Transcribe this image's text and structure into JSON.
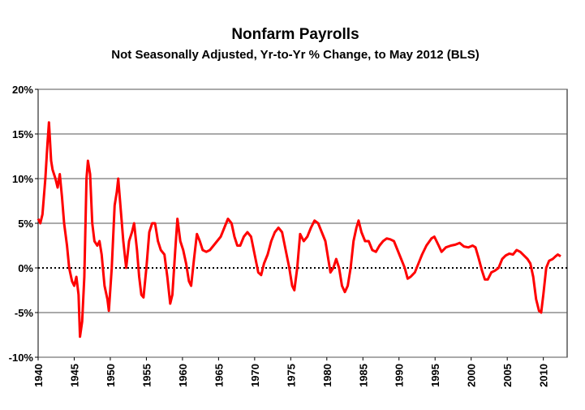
{
  "chart_data": {
    "type": "line",
    "title": "Nonfarm Payrolls",
    "subtitle": "Not Seasonally Adjusted, Yr-to-Yr % Change, to May 2012 (BLS)",
    "x": [
      1940,
      1940.3,
      1940.6,
      1941,
      1941.3,
      1941.5,
      1941.8,
      1942,
      1942.4,
      1942.7,
      1943,
      1943.3,
      1943.6,
      1944,
      1944.3,
      1944.7,
      1945,
      1945.3,
      1945.6,
      1945.8,
      1946.1,
      1946.4,
      1946.7,
      1946.9,
      1947.2,
      1947.5,
      1947.8,
      1948.2,
      1948.5,
      1948.8,
      1949.2,
      1949.6,
      1949.8,
      1950.2,
      1950.6,
      1950.9,
      1951.1,
      1951.4,
      1951.8,
      1952.2,
      1952.6,
      1953,
      1953.3,
      1953.7,
      1954,
      1954.3,
      1954.6,
      1955,
      1955.4,
      1955.8,
      1956.2,
      1956.6,
      1957,
      1957.5,
      1957.9,
      1958.3,
      1958.6,
      1959,
      1959.3,
      1959.7,
      1960.1,
      1960.5,
      1960.9,
      1961.2,
      1961.6,
      1962,
      1962.4,
      1962.8,
      1963.3,
      1963.8,
      1964.3,
      1964.8,
      1965.3,
      1965.8,
      1966.3,
      1966.8,
      1967.2,
      1967.6,
      1968,
      1968.5,
      1969,
      1969.5,
      1970,
      1970.5,
      1970.9,
      1971.3,
      1971.8,
      1972.3,
      1972.8,
      1973.3,
      1973.8,
      1974.3,
      1974.8,
      1975.2,
      1975.5,
      1975.9,
      1976.3,
      1976.8,
      1977.3,
      1977.8,
      1978.3,
      1978.8,
      1979.3,
      1979.8,
      1980.3,
      1980.5,
      1980.9,
      1981.3,
      1981.7,
      1982.1,
      1982.5,
      1982.9,
      1983.3,
      1983.7,
      1984.1,
      1984.4,
      1984.8,
      1985.3,
      1985.8,
      1986.3,
      1986.8,
      1987.3,
      1987.8,
      1988.3,
      1988.8,
      1989.3,
      1989.8,
      1990.3,
      1990.8,
      1991.2,
      1991.6,
      1992.2,
      1992.7,
      1993.2,
      1993.8,
      1994.5,
      1994.9,
      1995.5,
      1995.9,
      1996.5,
      1997.2,
      1997.8,
      1998.4,
      1999,
      1999.6,
      2000.2,
      2000.6,
      2001,
      2001.5,
      2001.9,
      2002.3,
      2002.8,
      2003.3,
      2003.8,
      2004.3,
      2004.8,
      2005.3,
      2005.8,
      2006.3,
      2006.8,
      2007.3,
      2007.8,
      2008.2,
      2008.6,
      2009,
      2009.4,
      2009.7,
      2010,
      2010.4,
      2010.8,
      2011.3,
      2011.7,
      2012,
      2012.4
    ],
    "series": [
      {
        "name": "Nonfarm Payrolls",
        "color": "#ff0000",
        "values": [
          5.5,
          5,
          6,
          10,
          14,
          16.3,
          12,
          11,
          10,
          9,
          10.5,
          8,
          5,
          2.5,
          0,
          -1.5,
          -2,
          -1,
          -3,
          -7.7,
          -6,
          -1,
          10,
          12,
          10.5,
          5,
          3,
          2.5,
          3,
          1.5,
          -2,
          -3.5,
          -4.8,
          0,
          7,
          8.5,
          10,
          7,
          3,
          0,
          3,
          4,
          5,
          2,
          -1,
          -3,
          -3.3,
          0,
          4,
          5,
          5,
          3,
          2,
          1.5,
          -1,
          -4,
          -3,
          2,
          5.5,
          3,
          2,
          0.5,
          -1.5,
          -2,
          1,
          3.8,
          3,
          2,
          1.8,
          2,
          2.5,
          3,
          3.5,
          4.5,
          5.5,
          5,
          3.5,
          2.5,
          2.5,
          3.5,
          4,
          3.5,
          1.5,
          -0.5,
          -0.8,
          0.5,
          1.5,
          3,
          4,
          4.5,
          4,
          2,
          0,
          -2,
          -2.5,
          0,
          3.8,
          3,
          3.5,
          4.5,
          5.3,
          5,
          4,
          3,
          0.5,
          -0.5,
          0,
          1,
          0,
          -2,
          -2.7,
          -2,
          0,
          3,
          4.5,
          5.3,
          4,
          3,
          3,
          2,
          1.8,
          2.5,
          3,
          3.3,
          3.2,
          3,
          2,
          1,
          0,
          -1.2,
          -1,
          -0.5,
          0.5,
          1.5,
          2.5,
          3.3,
          3.5,
          2.5,
          1.8,
          2.3,
          2.5,
          2.6,
          2.8,
          2.4,
          2.3,
          2.5,
          2.3,
          1.2,
          -0.3,
          -1.3,
          -1.3,
          -0.5,
          -0.3,
          0,
          1,
          1.4,
          1.6,
          1.5,
          2,
          1.8,
          1.4,
          1,
          0.5,
          -1,
          -3.5,
          -4.8,
          -5,
          -3,
          0,
          0.8,
          1,
          1.3,
          1.5,
          1.3
        ]
      }
    ],
    "xlim": [
      1940,
      2013.3
    ],
    "xticks": [
      1940,
      1945,
      1950,
      1955,
      1960,
      1965,
      1970,
      1975,
      1980,
      1985,
      1990,
      1995,
      2000,
      2005,
      2010
    ],
    "ylim": [
      -10,
      20
    ],
    "yticks": [
      {
        "value": -10,
        "label": "-10%"
      },
      {
        "value": -5,
        "label": "-5%"
      },
      {
        "value": 0,
        "label": "0%"
      },
      {
        "value": 5,
        "label": "5%"
      },
      {
        "value": 10,
        "label": "10%"
      },
      {
        "value": 15,
        "label": "15%"
      },
      {
        "value": 20,
        "label": "20%"
      }
    ],
    "grid": true
  }
}
